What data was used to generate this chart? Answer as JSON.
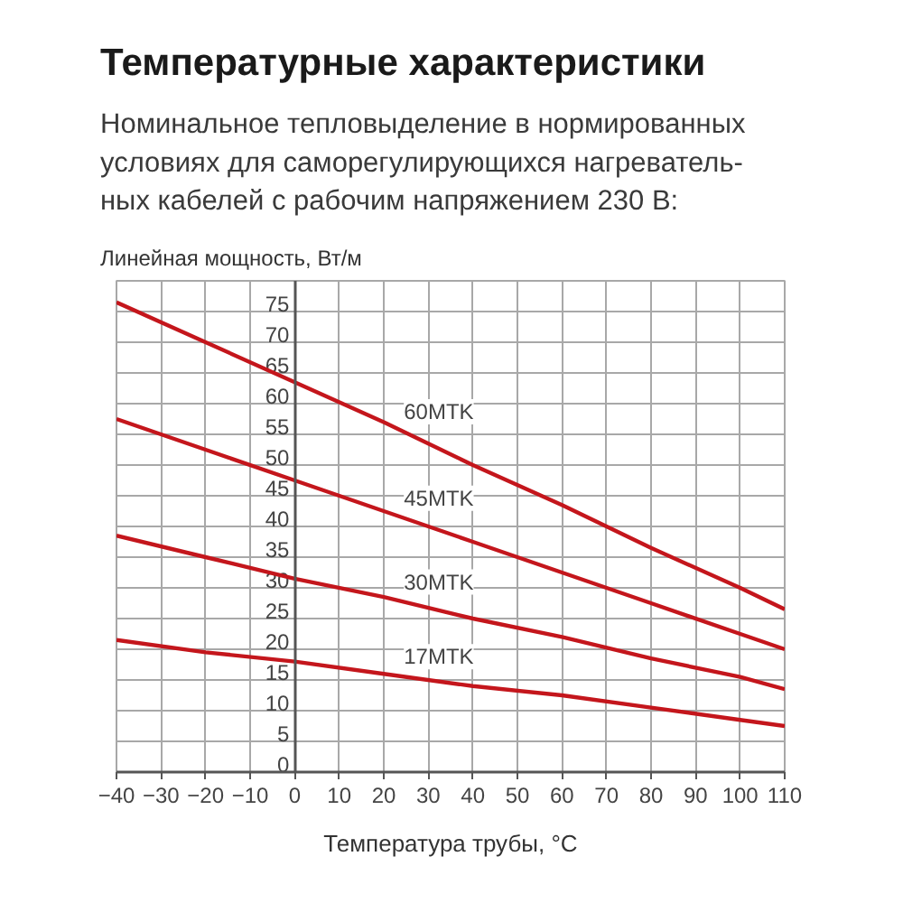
{
  "chart_data": {
    "type": "line",
    "title": "Температурные характеристики",
    "subtitle": "Номинальное тепловыделение в нормированных\nусловиях для саморегулирующихся нагреватель-\nных кабелей с рабочим напряжением 230 В:",
    "ylabel": "Линейная мощность, Вт/м",
    "xlabel": "Температура трубы, °С",
    "x": [
      -40,
      -20,
      0,
      20,
      40,
      60,
      80,
      100,
      110
    ],
    "series": [
      {
        "name": "60MTK",
        "color": "#c4161c",
        "values": [
          76.5,
          70,
          63.5,
          57,
          50,
          43.5,
          36.5,
          30,
          26.5
        ]
      },
      {
        "name": "45MTK",
        "color": "#c4161c",
        "values": [
          57.5,
          52.5,
          47.5,
          42.5,
          37.5,
          32.5,
          27.5,
          22.5,
          20
        ]
      },
      {
        "name": "30MTK",
        "color": "#c4161c",
        "values": [
          38.5,
          35,
          31.5,
          28.5,
          25,
          22,
          18.5,
          15.5,
          13.5
        ]
      },
      {
        "name": "17MTK",
        "color": "#c4161c",
        "values": [
          21.5,
          19.5,
          18,
          16,
          14,
          12.5,
          10.5,
          8.5,
          7.5
        ]
      }
    ],
    "xlim": [
      -40,
      110
    ],
    "ylim": [
      0,
      80
    ],
    "xticks": [
      -40,
      -30,
      -20,
      -10,
      0,
      10,
      20,
      30,
      40,
      50,
      60,
      70,
      80,
      90,
      100,
      110
    ],
    "yticks": [
      0,
      5,
      10,
      15,
      20,
      25,
      30,
      35,
      40,
      45,
      50,
      55,
      60,
      65,
      70,
      75
    ],
    "grid": true,
    "line_style": "solid"
  }
}
